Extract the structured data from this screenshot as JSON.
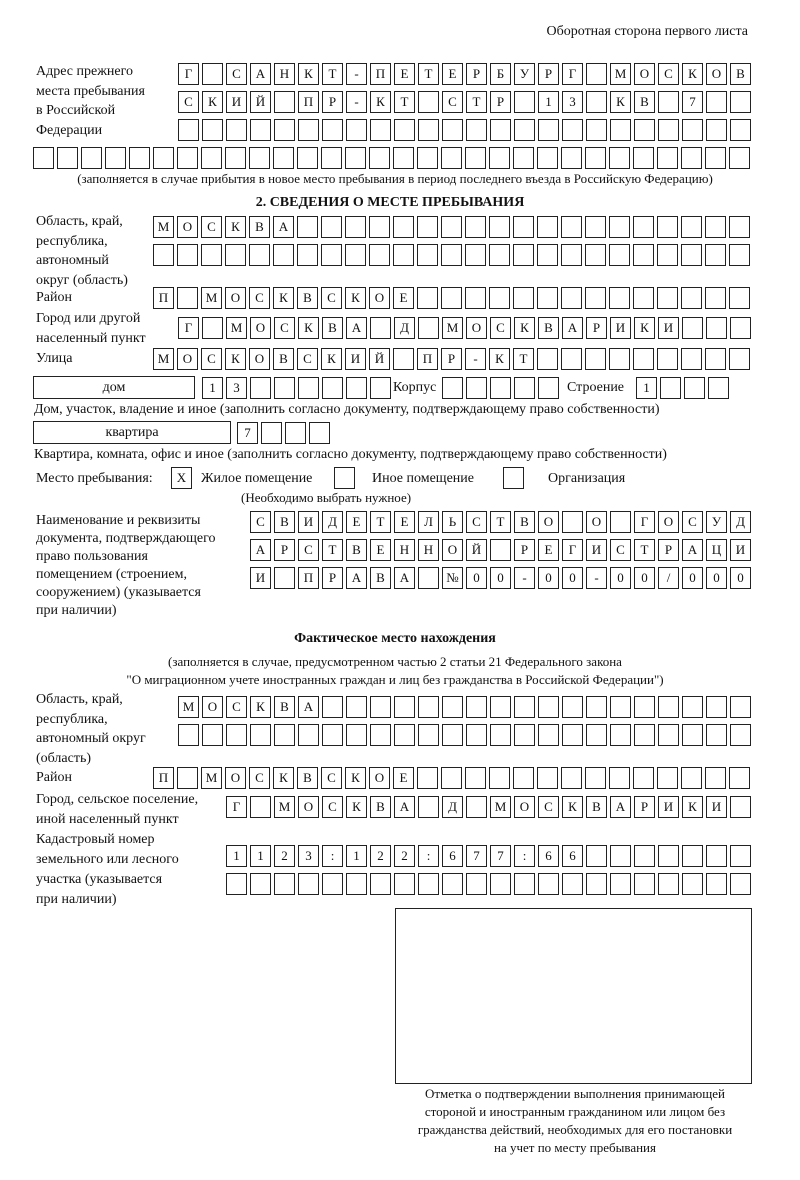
{
  "header": "Оборотная сторона первого листа",
  "prev": {
    "label": [
      "Адрес прежнего",
      "места пребывания",
      "в Российской",
      "Федерации"
    ],
    "rows": [
      "Г САНКТ-ПЕТЕРБУРГ МОСКОВ",
      "СКИЙ ПР-КТ СТР 13 КВ 7  ",
      "                        ",
      "                              "
    ],
    "note": "(заполняется в случае прибытия в новое место пребывания в период последнего въезда в Российскую Федерацию)"
  },
  "section2": {
    "title": "2. СВЕДЕНИЯ О МЕСТЕ ПРЕБЫВАНИЯ",
    "oblast_label": [
      "Область, край,",
      "республика,",
      "автономный",
      "округ (область)"
    ],
    "oblast_rows": [
      "МОСКВА                   ",
      "                         "
    ],
    "rayon_label": "Район",
    "rayon": "П МОСКВСКОЕ              ",
    "gorod_label": [
      "Город или другой",
      "населенный пункт"
    ],
    "gorod": "Г МОСКВА Д МОСКВАРИКИ   ",
    "ulica_label": "Улица",
    "ulica": "МОСКОВСКИЙ ПР-КТ         ",
    "dom_type": "дом",
    "dom": "13      ",
    "korpus_label": "Корпус",
    "korpus": "     ",
    "stroenie_label": "Строение",
    "stroenie": "1   ",
    "dom_note": "Дом, участок, владение и иное (заполнить согласно документу, подтверждающему право собственности)",
    "kv_type": "квартира",
    "kv": "7   ",
    "kv_note": "Квартира, комната, офис и иное (заполнить согласно документу, подтверждающему право собственности)",
    "mesto_label": "Место пребывания:",
    "opt1_mark": "X",
    "opt1": "Жилое помещение",
    "opt2_mark": "",
    "opt2": "Иное помещение",
    "opt3_mark": "",
    "opt3": "Организация",
    "mesto_note": "(Необходимо выбрать нужное)",
    "doc_label": [
      "Наименование и реквизиты",
      "документа, подтверждающего",
      "право пользования",
      "помещением (строением,",
      "сооружением) (указывается",
      "при наличии)"
    ],
    "doc_rows": [
      "СВИДЕТЕЛЬСТВО О ГОСУД",
      "АРСТВЕННОЙ РЕГИСТРАЦИ",
      "И ПРАВА №00-00-00/000"
    ]
  },
  "fact": {
    "title": "Фактическое место нахождения",
    "note": [
      "(заполняется в случае, предусмотренном частью 2 статьи 21 Федерального закона",
      "\"О миграционном учете иностранных граждан и лиц без гражданства в Российской Федерации\")"
    ],
    "oblast_label": [
      "Область, край,",
      "республика,",
      "автономный округ",
      "(область)"
    ],
    "oblast_rows": [
      "МОСКВА                  ",
      "                        "
    ],
    "rayon_label": "Район",
    "rayon": "П МОСКВСКОЕ              ",
    "gorod_label": [
      "Город, сельское поселение,",
      "иной населенный пункт"
    ],
    "gorod": "Г МОСКВА Д МОСКВАРИКИ ",
    "kad_label": [
      "Кадастровый номер",
      "земельного или лесного",
      "участка (указывается",
      "при наличии)"
    ],
    "kad_rows": [
      "1123:122:677:66       ",
      "                      "
    ]
  },
  "stamp_caption": [
    "Отметка о подтверждении выполнения принимающей",
    "стороной и иностранным гражданином или лицом без",
    "гражданства действий, необходимых для его постановки",
    "на учет по месту пребывания"
  ]
}
